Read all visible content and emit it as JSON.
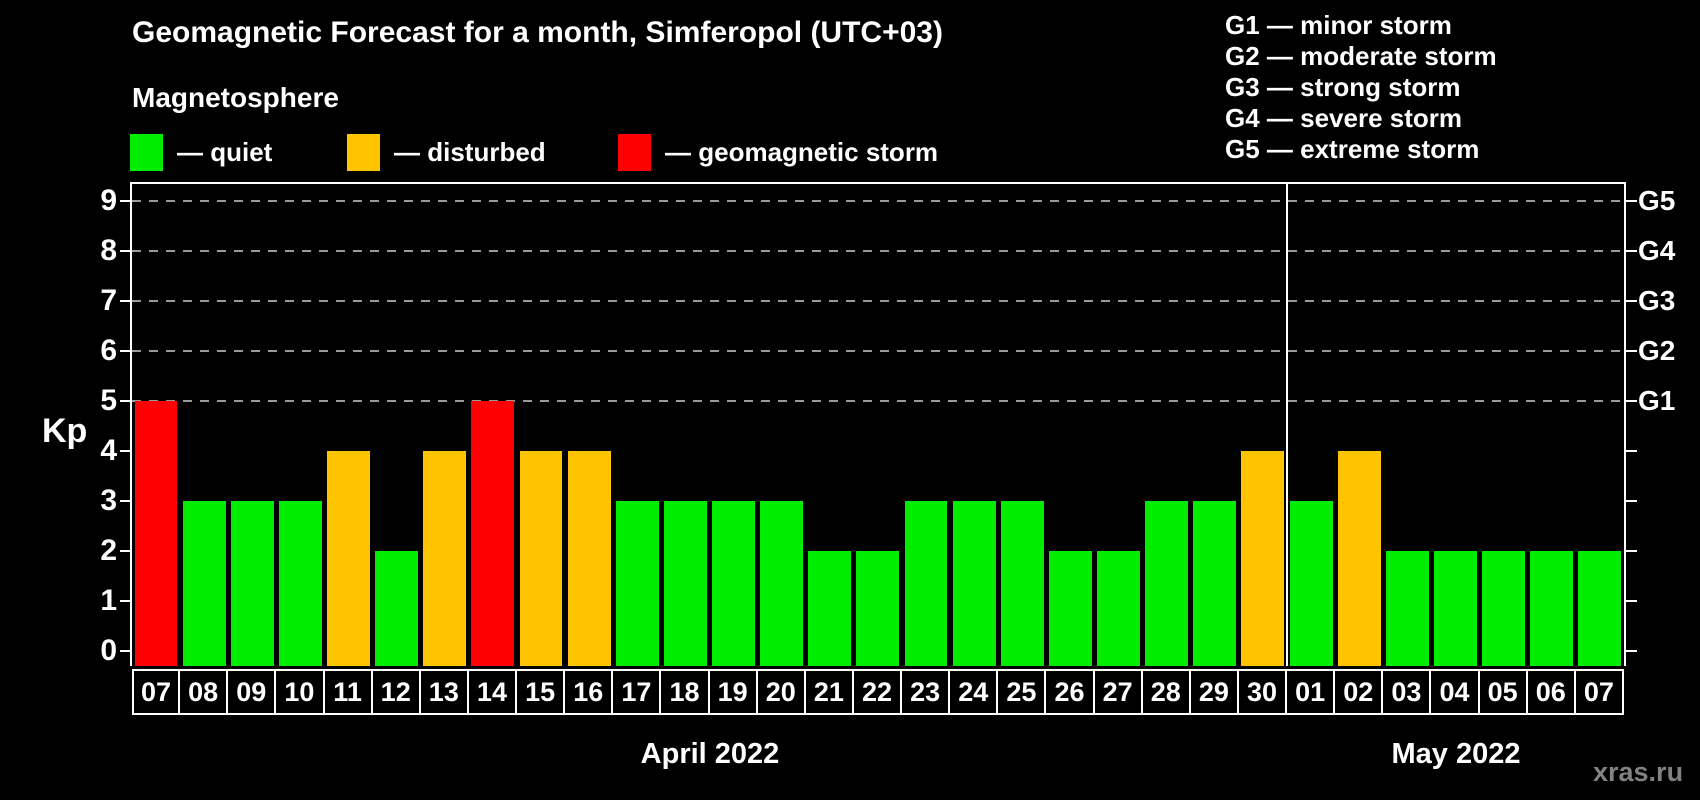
{
  "header": {
    "title": "Geomagnetic Forecast for a month, Simferopol (UTC+03)",
    "subtitle": "Magnetosphere"
  },
  "magnetosphere_legend": {
    "items": [
      {
        "name": "quiet",
        "label": "— quiet",
        "color": "#00ed00"
      },
      {
        "name": "disturbed",
        "label": "— disturbed",
        "color": "#ffc400"
      },
      {
        "name": "storm",
        "label": "— geomagnetic storm",
        "color": "#ff0000"
      }
    ]
  },
  "g_legend": {
    "items": [
      {
        "label": "G1 — minor storm"
      },
      {
        "label": "G2 — moderate storm"
      },
      {
        "label": "G3 — strong storm"
      },
      {
        "label": "G4 — severe storm"
      },
      {
        "label": "G5 — extreme storm"
      }
    ]
  },
  "axis": {
    "kp_label": "Kp"
  },
  "months": {
    "april": "April 2022",
    "may": "May 2022"
  },
  "watermark": "xras.ru",
  "chart_data": {
    "type": "bar",
    "title": "Geomagnetic Forecast for a month, Simferopol (UTC+03)",
    "ylabel": "Kp",
    "ylim": [
      0,
      9.6
    ],
    "grid": "dashed horizontal at Kp 5-9",
    "gridlines_kp": [
      5,
      6,
      7,
      8,
      9
    ],
    "y_ticks": [
      "0",
      "1",
      "2",
      "3",
      "4",
      "5",
      "6",
      "7",
      "8",
      "9"
    ],
    "right_axis_labels": [
      {
        "code": "G1",
        "kp": 5
      },
      {
        "code": "G2",
        "kp": 6
      },
      {
        "code": "G3",
        "kp": 7
      },
      {
        "code": "G4",
        "kp": 8
      },
      {
        "code": "G5",
        "kp": 9
      }
    ],
    "categories": [
      "07",
      "08",
      "09",
      "10",
      "11",
      "12",
      "13",
      "14",
      "15",
      "16",
      "17",
      "18",
      "19",
      "20",
      "21",
      "22",
      "23",
      "24",
      "25",
      "26",
      "27",
      "28",
      "29",
      "30",
      "01",
      "02",
      "03",
      "04",
      "05",
      "06",
      "07"
    ],
    "values": [
      5,
      3,
      3,
      3,
      4,
      2,
      4,
      5,
      4,
      4,
      3,
      3,
      3,
      3,
      2,
      2,
      3,
      3,
      3,
      2,
      2,
      3,
      3,
      4,
      3,
      4,
      2,
      2,
      2,
      2,
      2
    ],
    "statuses": [
      "storm",
      "quiet",
      "quiet",
      "quiet",
      "disturbed",
      "quiet",
      "disturbed",
      "storm",
      "disturbed",
      "disturbed",
      "quiet",
      "quiet",
      "quiet",
      "quiet",
      "quiet",
      "quiet",
      "quiet",
      "quiet",
      "quiet",
      "quiet",
      "quiet",
      "quiet",
      "quiet",
      "disturbed",
      "quiet",
      "disturbed",
      "quiet",
      "quiet",
      "quiet",
      "quiet",
      "quiet"
    ],
    "status_colors": {
      "quiet": "#00ed00",
      "disturbed": "#ffc400",
      "storm": "#ff0000"
    },
    "months": [
      {
        "label": "April 2022",
        "days": 24
      },
      {
        "label": "May 2022",
        "days": 7
      }
    ],
    "legend_position": "top-left"
  }
}
